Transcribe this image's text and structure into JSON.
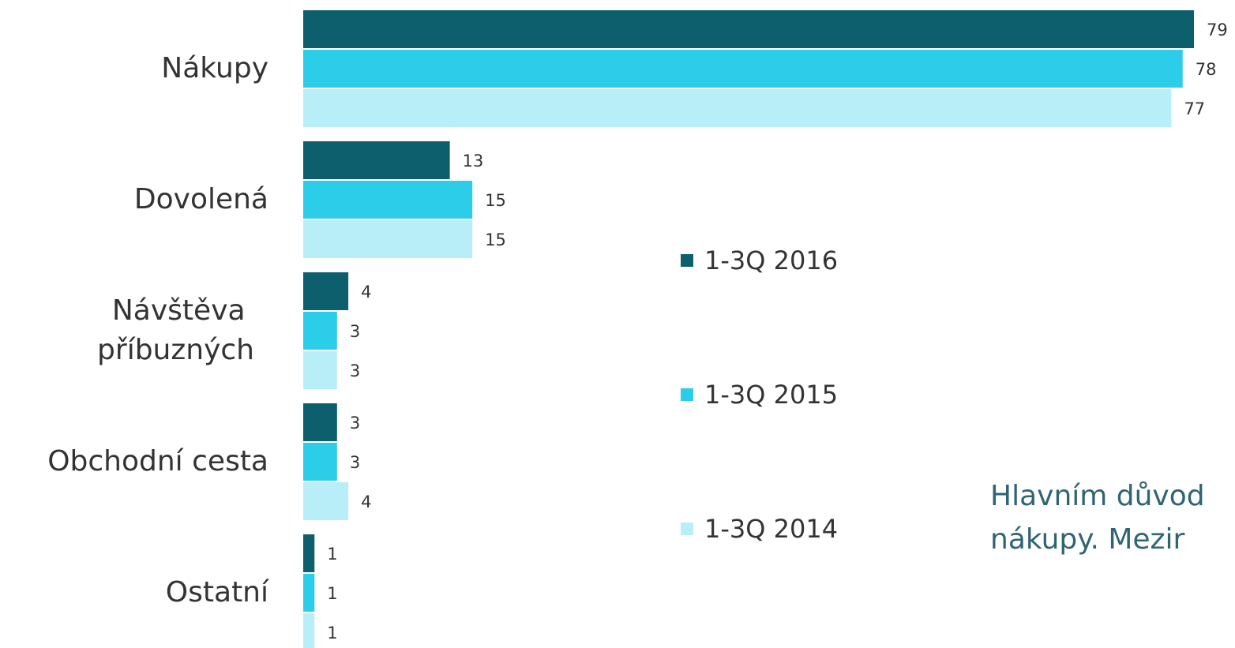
{
  "chart_data": {
    "type": "bar",
    "orientation": "horizontal",
    "categories": [
      "Nákupy",
      "Dovolená",
      "Návštěva příbuzných",
      "Obchodní cesta",
      "Ostatní"
    ],
    "series": [
      {
        "name": "1-3Q 2016",
        "color": "#0e5f6e",
        "values": [
          79,
          13,
          4,
          3,
          1
        ]
      },
      {
        "name": "1-3Q 2015",
        "color": "#2ccde8",
        "values": [
          78,
          15,
          3,
          3,
          1
        ]
      },
      {
        "name": "1-3Q 2014",
        "color": "#b8eef7",
        "values": [
          77,
          15,
          3,
          4,
          1
        ]
      }
    ],
    "annotations": [
      "Hlavním důvod",
      "nákupy. Mezir"
    ]
  }
}
